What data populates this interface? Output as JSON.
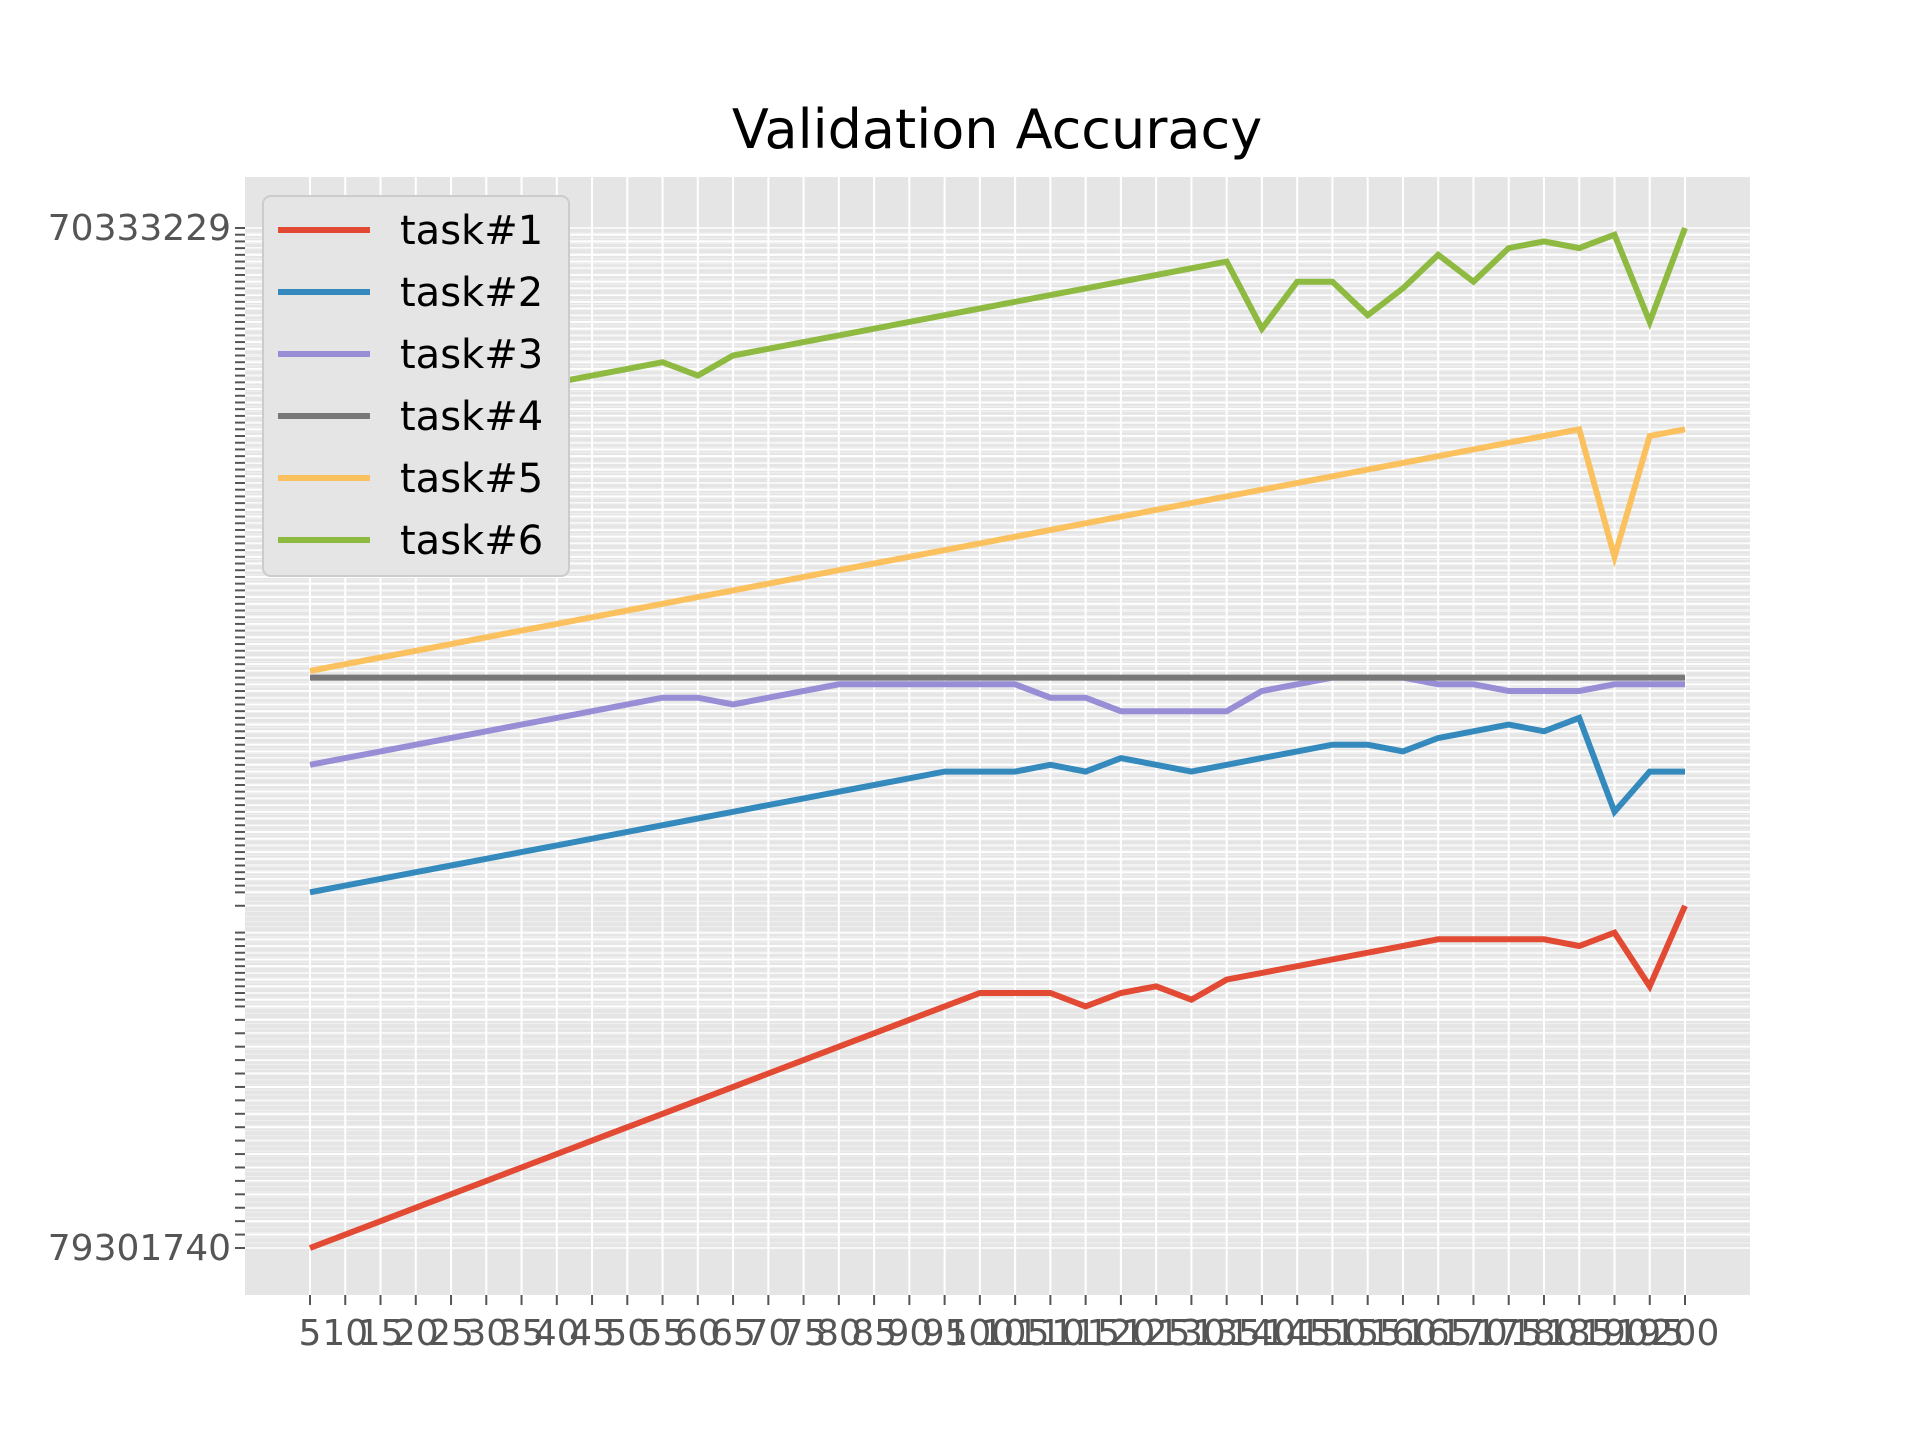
{
  "chart_data": {
    "type": "line",
    "title": "Validation Accuracy",
    "xlabel": "",
    "ylabel": "",
    "x": [
      5,
      10,
      15,
      20,
      25,
      30,
      35,
      40,
      45,
      50,
      55,
      60,
      65,
      70,
      75,
      80,
      85,
      90,
      95,
      100,
      105,
      110,
      115,
      120,
      125,
      130,
      135,
      140,
      145,
      150,
      155,
      160,
      165,
      170,
      175,
      180,
      185,
      190,
      195,
      200
    ],
    "x_tick_labels": [
      "5",
      "10",
      "15",
      "20",
      "25",
      "30",
      "35",
      "40",
      "45",
      "50",
      "55",
      "60",
      "65",
      "70",
      "75",
      "80",
      "85",
      "90",
      "95",
      "100",
      "105",
      "110",
      "115",
      "120",
      "125",
      "130",
      "135",
      "140",
      "145",
      "150",
      "155",
      "160",
      "165",
      "170",
      "175",
      "180",
      "185",
      "190",
      "195",
      "200"
    ],
    "y_scale": "categorical (each plotted value is its own tick; tick labels overlap and are illegible)",
    "y_top_tick_label": "70333229",
    "y_bottom_tick_label": "79301740",
    "grid": true,
    "legend_position": "upper-left",
    "series": [
      {
        "name": "task#1",
        "color": "#E24A33",
        "values": [
          0.0,
          0.02,
          0.04,
          0.06,
          0.08,
          0.1,
          0.12,
          0.14,
          0.16,
          0.18,
          0.2,
          0.22,
          0.24,
          0.26,
          0.28,
          0.3,
          0.32,
          0.34,
          0.36,
          0.38,
          0.38,
          0.38,
          0.36,
          0.38,
          0.39,
          0.37,
          0.4,
          0.41,
          0.42,
          0.43,
          0.44,
          0.45,
          0.46,
          0.46,
          0.46,
          0.46,
          0.45,
          0.47,
          0.39,
          0.51
        ]
      },
      {
        "name": "task#2",
        "color": "#348ABD",
        "values": [
          0.53,
          0.54,
          0.55,
          0.56,
          0.57,
          0.58,
          0.59,
          0.6,
          0.61,
          0.62,
          0.63,
          0.64,
          0.65,
          0.66,
          0.67,
          0.68,
          0.69,
          0.7,
          0.71,
          0.71,
          0.71,
          0.72,
          0.71,
          0.73,
          0.72,
          0.71,
          0.72,
          0.73,
          0.74,
          0.75,
          0.75,
          0.74,
          0.76,
          0.77,
          0.78,
          0.77,
          0.79,
          0.65,
          0.71,
          0.71
        ]
      },
      {
        "name": "task#3",
        "color": "#988ED5",
        "values": [
          0.72,
          0.73,
          0.74,
          0.75,
          0.76,
          0.77,
          0.78,
          0.79,
          0.8,
          0.81,
          0.82,
          0.82,
          0.81,
          0.82,
          0.83,
          0.84,
          0.84,
          0.84,
          0.84,
          0.84,
          0.84,
          0.82,
          0.82,
          0.8,
          0.8,
          0.8,
          0.8,
          0.83,
          0.84,
          0.85,
          0.85,
          0.85,
          0.84,
          0.84,
          0.83,
          0.83,
          0.83,
          0.84,
          0.84,
          0.84
        ]
      },
      {
        "name": "task#4",
        "color": "#777777",
        "values": [
          0.85,
          0.85,
          0.85,
          0.85,
          0.85,
          0.85,
          0.85,
          0.85,
          0.85,
          0.85,
          0.85,
          0.85,
          0.85,
          0.85,
          0.85,
          0.85,
          0.85,
          0.85,
          0.85,
          0.85,
          0.85,
          0.85,
          0.85,
          0.85,
          0.85,
          0.85,
          0.85,
          0.85,
          0.85,
          0.85,
          0.85,
          0.85,
          0.85,
          0.85,
          0.85,
          0.85,
          0.85,
          0.85,
          0.85,
          0.85
        ]
      },
      {
        "name": "task#5",
        "color": "#FBC15E",
        "values": [
          0.86,
          0.87,
          0.88,
          0.89,
          0.9,
          0.91,
          0.92,
          0.93,
          0.94,
          0.95,
          0.96,
          0.97,
          0.98,
          0.99,
          1.0,
          1.01,
          1.02,
          1.03,
          1.04,
          1.05,
          1.06,
          1.07,
          1.08,
          1.09,
          1.1,
          1.11,
          1.12,
          1.13,
          1.14,
          1.15,
          1.16,
          1.17,
          1.18,
          1.19,
          1.2,
          1.21,
          1.22,
          1.03,
          1.21,
          1.22
        ]
      },
      {
        "name": "task#6",
        "color": "#8EBA42",
        "values": [
          1.22,
          1.23,
          1.24,
          1.25,
          1.26,
          1.27,
          1.28,
          1.29,
          1.3,
          1.31,
          1.32,
          1.3,
          1.33,
          1.34,
          1.35,
          1.36,
          1.37,
          1.38,
          1.39,
          1.4,
          1.41,
          1.42,
          1.43,
          1.44,
          1.45,
          1.46,
          1.47,
          1.37,
          1.44,
          1.44,
          1.39,
          1.43,
          1.48,
          1.44,
          1.49,
          1.5,
          1.49,
          1.51,
          1.38,
          1.52
        ]
      }
    ],
    "ylim": [
      -0.02,
      1.54
    ]
  }
}
